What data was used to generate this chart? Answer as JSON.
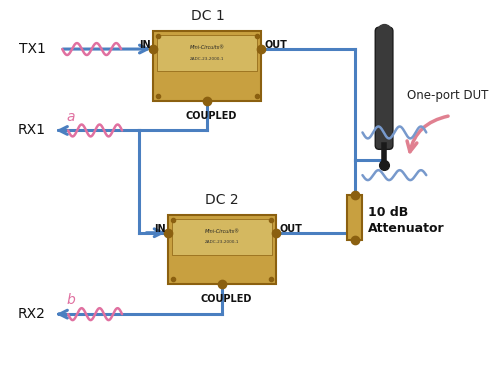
{
  "bg_color": "#ffffff",
  "blue": "#4A7FC0",
  "pink": "#E070A0",
  "light_blue": "#7799CC",
  "dark_gray": "#2A2A2A",
  "gold_face": "#C8A040",
  "gold_edge": "#8B6010",
  "gold_inner": "#D4B860",
  "dc1_label": "DC 1",
  "dc2_label": "DC 2",
  "tx1_label": "TX1",
  "rx1_label": "RX1",
  "rx2_label": "RX2",
  "in_label": "IN",
  "out_label": "OUT",
  "coupled_label": "COUPLED",
  "att_label1": "10 dB",
  "att_label2": "Attenuator",
  "dut_label": "One-port DUT",
  "a_label": "a",
  "b_label": "b",
  "mc_label": "Mini-Circuits®",
  "part_label": "ZADC-23-2000-1"
}
